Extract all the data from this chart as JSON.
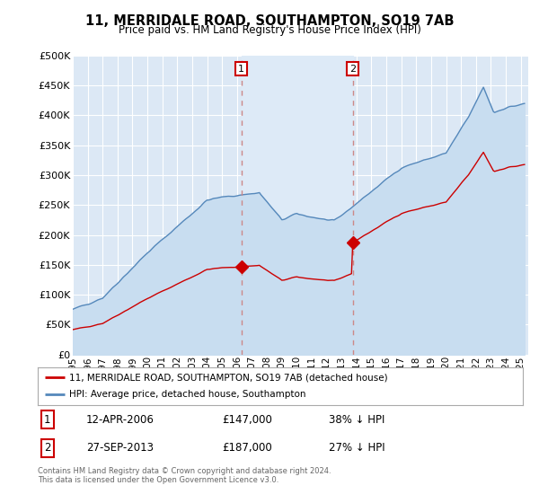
{
  "title": "11, MERRIDALE ROAD, SOUTHAMPTON, SO19 7AB",
  "subtitle": "Price paid vs. HM Land Registry's House Price Index (HPI)",
  "ylim": [
    0,
    500000
  ],
  "xlim_start": 1995.0,
  "xlim_end": 2025.5,
  "background_color": "#ffffff",
  "plot_bg_color": "#dce8f5",
  "grid_color": "#ffffff",
  "transaction1": {
    "date_num": 2006.28,
    "price": 147000,
    "label": "1"
  },
  "transaction2": {
    "date_num": 2013.74,
    "price": 187000,
    "label": "2"
  },
  "legend_line1": "11, MERRIDALE ROAD, SOUTHAMPTON, SO19 7AB (detached house)",
  "legend_line2": "HPI: Average price, detached house, Southampton",
  "annotation1_date": "12-APR-2006",
  "annotation1_price": "£147,000",
  "annotation1_pct": "38% ↓ HPI",
  "annotation2_date": "27-SEP-2013",
  "annotation2_price": "£187,000",
  "annotation2_pct": "27% ↓ HPI",
  "footer": "Contains HM Land Registry data © Crown copyright and database right 2024.\nThis data is licensed under the Open Government Licence v3.0.",
  "red_color": "#cc0000",
  "blue_color": "#5588bb",
  "blue_fill": "#c8ddf0"
}
